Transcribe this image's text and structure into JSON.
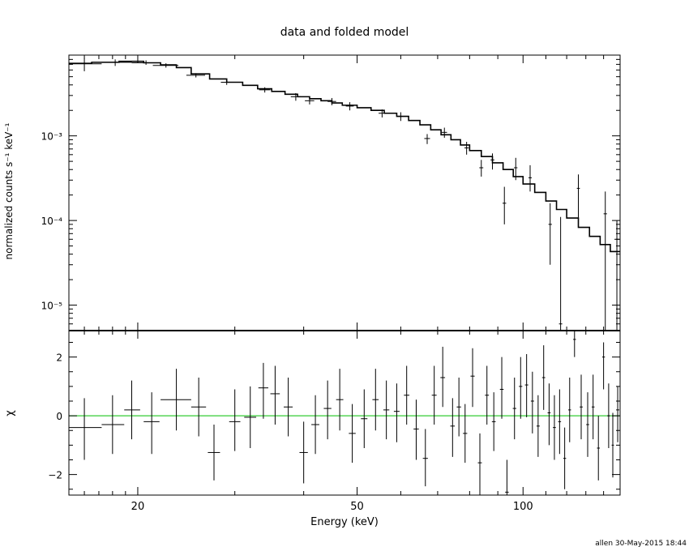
{
  "footer": "allen 30-May-2015 18:44",
  "colors": {
    "model": "#000000",
    "data": "#000000",
    "zero_line": "#33cc33",
    "axes": "#000000"
  },
  "chart_data": [
    {
      "type": "line",
      "panel": "spectrum",
      "title": "data and folded model",
      "xlabel": "",
      "ylabel": "normalized counts s⁻¹ keV⁻¹",
      "xscale": "log",
      "yscale": "log",
      "xlim": [
        15,
        150
      ],
      "ylim": [
        5e-06,
        0.009
      ],
      "yticks": [
        1e-05,
        0.0001,
        0.001
      ],
      "ytick_labels": [
        "10⁻⁵",
        "10⁻⁴",
        "10⁻³"
      ],
      "series": [
        {
          "role": "data",
          "points": [
            {
              "x": 16.0,
              "xlo": 15.0,
              "xhi": 17.2,
              "y": 0.0071,
              "ylo": 0.0058,
              "yhi": 0.0083
            },
            {
              "x": 18.2,
              "xlo": 17.2,
              "xhi": 19.5,
              "y": 0.0074,
              "ylo": 0.0067,
              "yhi": 0.008
            },
            {
              "x": 20.7,
              "xlo": 19.5,
              "xhi": 21.3,
              "y": 0.0073,
              "ylo": 0.0069,
              "yhi": 0.0078
            },
            {
              "x": 22.5,
              "xlo": 21.3,
              "xhi": 23.7,
              "y": 0.0068,
              "ylo": 0.0064,
              "yhi": 0.0072
            },
            {
              "x": 25.5,
              "xlo": 24.5,
              "xhi": 26.5,
              "y": 0.0052,
              "ylo": 0.0049,
              "yhi": 0.0055
            },
            {
              "x": 29.0,
              "xlo": 28.3,
              "xhi": 29.7,
              "y": 0.0043,
              "ylo": 0.004,
              "yhi": 0.0046
            },
            {
              "x": 34.0,
              "xlo": 33.2,
              "xhi": 34.8,
              "y": 0.0035,
              "ylo": 0.00325,
              "yhi": 0.00375
            },
            {
              "x": 38.7,
              "xlo": 37.9,
              "xhi": 39.5,
              "y": 0.0029,
              "ylo": 0.0026,
              "yhi": 0.0032
            },
            {
              "x": 41.0,
              "xlo": 40.2,
              "xhi": 41.8,
              "y": 0.0026,
              "ylo": 0.00235,
              "yhi": 0.00285
            },
            {
              "x": 45.0,
              "xlo": 44.2,
              "xhi": 45.8,
              "y": 0.00255,
              "ylo": 0.0023,
              "yhi": 0.0028
            },
            {
              "x": 48.5,
              "xlo": 47.7,
              "xhi": 49.3,
              "y": 0.00225,
              "ylo": 0.002,
              "yhi": 0.0025
            },
            {
              "x": 55.5,
              "xlo": 54.7,
              "xhi": 56.3,
              "y": 0.00185,
              "ylo": 0.00165,
              "yhi": 0.00205
            },
            {
              "x": 60.0,
              "xlo": 59.2,
              "xhi": 60.8,
              "y": 0.0017,
              "ylo": 0.0015,
              "yhi": 0.0019
            },
            {
              "x": 67.0,
              "xlo": 66.2,
              "xhi": 67.8,
              "y": 0.00093,
              "ylo": 0.0008,
              "yhi": 0.00105
            },
            {
              "x": 72.0,
              "xlo": 71.2,
              "xhi": 72.8,
              "y": 0.0011,
              "ylo": 0.00095,
              "yhi": 0.00125
            },
            {
              "x": 79.0,
              "xlo": 78.3,
              "xhi": 79.7,
              "y": 0.00072,
              "ylo": 0.0006,
              "yhi": 0.00085
            },
            {
              "x": 84.0,
              "xlo": 83.3,
              "xhi": 84.7,
              "y": 0.00042,
              "ylo": 0.00033,
              "yhi": 0.00052
            },
            {
              "x": 88.0,
              "xlo": 87.3,
              "xhi": 88.7,
              "y": 0.00052,
              "ylo": 0.0004,
              "yhi": 0.00062
            },
            {
              "x": 92.5,
              "xlo": 91.8,
              "xhi": 93.2,
              "y": 0.00016,
              "ylo": 9e-05,
              "yhi": 0.00025
            },
            {
              "x": 97.0,
              "xlo": 96.3,
              "xhi": 97.7,
              "y": 0.00042,
              "ylo": 0.0003,
              "yhi": 0.00055
            },
            {
              "x": 103.0,
              "xlo": 102.3,
              "xhi": 103.7,
              "y": 0.00032,
              "ylo": 0.00022,
              "yhi": 0.00045
            },
            {
              "x": 112.0,
              "xlo": 111.2,
              "xhi": 112.8,
              "y": 9e-05,
              "ylo": 3e-05,
              "yhi": 0.00016
            },
            {
              "x": 117.0,
              "xlo": 116.2,
              "xhi": 117.8,
              "y": 6e-06,
              "ylo": 5e-06,
              "yhi": 0.00011
            },
            {
              "x": 126.0,
              "xlo": 125.2,
              "xhi": 126.8,
              "y": 0.00024,
              "ylo": 0.0001,
              "yhi": 0.00035
            },
            {
              "x": 141.0,
              "xlo": 140.0,
              "xhi": 142.0,
              "y": 0.00012,
              "ylo": 5e-06,
              "yhi": 0.00022
            },
            {
              "x": 148.0,
              "xlo": 146.5,
              "xhi": 149.5,
              "y": 6e-05,
              "ylo": 5e-06,
              "yhi": 0.0001
            }
          ]
        },
        {
          "role": "model",
          "steps": [
            [
              15.0,
              0.0072
            ],
            [
              16.5,
              0.0074
            ],
            [
              18.5,
              0.0076
            ],
            [
              20.5,
              0.0073
            ],
            [
              22.0,
              0.0069
            ],
            [
              23.5,
              0.0064
            ],
            [
              25.0,
              0.0054
            ],
            [
              27.0,
              0.0047
            ],
            [
              29.0,
              0.0043
            ],
            [
              31.0,
              0.00395
            ],
            [
              33.0,
              0.0036
            ],
            [
              35.0,
              0.00335
            ],
            [
              37.0,
              0.0031
            ],
            [
              39.0,
              0.0029
            ],
            [
              41.0,
              0.00275
            ],
            [
              43.0,
              0.0026
            ],
            [
              45.0,
              0.00245
            ],
            [
              47.0,
              0.0023
            ],
            [
              50.0,
              0.00215
            ],
            [
              53.0,
              0.002
            ],
            [
              56.0,
              0.00185
            ],
            [
              59.0,
              0.0017
            ],
            [
              62.0,
              0.00152
            ],
            [
              65.0,
              0.00135
            ],
            [
              68.0,
              0.00118
            ],
            [
              71.0,
              0.00103
            ],
            [
              74.0,
              0.0009
            ],
            [
              77.0,
              0.00078
            ],
            [
              80.0,
              0.00067
            ],
            [
              84.0,
              0.00057
            ],
            [
              88.0,
              0.00048
            ],
            [
              92.0,
              0.0004
            ],
            [
              96.0,
              0.00033
            ],
            [
              100.0,
              0.00027
            ],
            [
              105.0,
              0.000215
            ],
            [
              110.0,
              0.00017
            ],
            [
              115.0,
              0.000135
            ],
            [
              120.0,
              0.000107
            ],
            [
              126.0,
              8.3e-05
            ],
            [
              132.0,
              6.5e-05
            ],
            [
              138.0,
              5.2e-05
            ],
            [
              144.0,
              4.3e-05
            ],
            [
              150.0,
              4.3e-05
            ]
          ]
        }
      ]
    },
    {
      "type": "scatter",
      "panel": "residuals",
      "xlabel": "Energy (keV)",
      "ylabel": "χ",
      "xscale": "log",
      "xlim": [
        15,
        150
      ],
      "ylim": [
        -2.7,
        2.9
      ],
      "xticks": [
        20,
        50,
        100
      ],
      "xtick_labels": [
        "20",
        "50",
        "100"
      ],
      "yticks": [
        -2,
        0,
        2
      ],
      "ytick_labels": [
        "−2",
        "0",
        "2"
      ],
      "reference_line": 0,
      "points": [
        {
          "x": 16.0,
          "xlo": 15.0,
          "xhi": 17.2,
          "y": -0.4,
          "ylo": -1.5,
          "yhi": 0.6
        },
        {
          "x": 18.0,
          "xlo": 17.2,
          "xhi": 18.9,
          "y": -0.3,
          "ylo": -1.3,
          "yhi": 0.7
        },
        {
          "x": 19.5,
          "xlo": 18.9,
          "xhi": 20.2,
          "y": 0.2,
          "ylo": -0.8,
          "yhi": 1.2
        },
        {
          "x": 21.2,
          "xlo": 20.5,
          "xhi": 21.9,
          "y": -0.2,
          "ylo": -1.3,
          "yhi": 0.8
        },
        {
          "x": 23.5,
          "xlo": 22.0,
          "xhi": 25.0,
          "y": 0.55,
          "ylo": -0.5,
          "yhi": 1.6
        },
        {
          "x": 25.8,
          "xlo": 25.0,
          "xhi": 26.6,
          "y": 0.3,
          "ylo": -0.7,
          "yhi": 1.3
        },
        {
          "x": 27.5,
          "xlo": 26.8,
          "xhi": 28.2,
          "y": -1.25,
          "ylo": -2.2,
          "yhi": -0.3
        },
        {
          "x": 30.0,
          "xlo": 29.3,
          "xhi": 30.7,
          "y": -0.2,
          "ylo": -1.2,
          "yhi": 0.9
        },
        {
          "x": 32.0,
          "xlo": 31.2,
          "xhi": 32.8,
          "y": -0.05,
          "ylo": -1.1,
          "yhi": 1.0
        },
        {
          "x": 33.8,
          "xlo": 33.1,
          "xhi": 34.5,
          "y": 0.95,
          "ylo": -0.1,
          "yhi": 1.8
        },
        {
          "x": 35.5,
          "xlo": 34.8,
          "xhi": 36.2,
          "y": 0.75,
          "ylo": -0.3,
          "yhi": 1.7
        },
        {
          "x": 37.5,
          "xlo": 36.8,
          "xhi": 38.2,
          "y": 0.3,
          "ylo": -0.7,
          "yhi": 1.3
        },
        {
          "x": 40.0,
          "xlo": 39.3,
          "xhi": 40.7,
          "y": -1.25,
          "ylo": -2.3,
          "yhi": -0.2
        },
        {
          "x": 42.0,
          "xlo": 41.3,
          "xhi": 42.7,
          "y": -0.3,
          "ylo": -1.3,
          "yhi": 0.7
        },
        {
          "x": 44.2,
          "xlo": 43.5,
          "xhi": 44.9,
          "y": 0.25,
          "ylo": -0.8,
          "yhi": 1.2
        },
        {
          "x": 46.5,
          "xlo": 45.8,
          "xhi": 47.2,
          "y": 0.55,
          "ylo": -0.5,
          "yhi": 1.6
        },
        {
          "x": 49.0,
          "xlo": 48.3,
          "xhi": 49.7,
          "y": -0.6,
          "ylo": -1.6,
          "yhi": 0.4
        },
        {
          "x": 51.5,
          "xlo": 50.8,
          "xhi": 52.2,
          "y": -0.1,
          "ylo": -1.1,
          "yhi": 0.9
        },
        {
          "x": 54.0,
          "xlo": 53.3,
          "xhi": 54.7,
          "y": 0.55,
          "ylo": -0.5,
          "yhi": 1.6
        },
        {
          "x": 56.5,
          "xlo": 55.8,
          "xhi": 57.2,
          "y": 0.2,
          "ylo": -0.8,
          "yhi": 1.2
        },
        {
          "x": 59.0,
          "xlo": 58.3,
          "xhi": 59.7,
          "y": 0.15,
          "ylo": -0.9,
          "yhi": 1.1
        },
        {
          "x": 61.5,
          "xlo": 60.8,
          "xhi": 62.2,
          "y": 0.7,
          "ylo": -0.3,
          "yhi": 1.7
        },
        {
          "x": 64.0,
          "xlo": 63.3,
          "xhi": 64.7,
          "y": -0.45,
          "ylo": -1.5,
          "yhi": 0.55
        },
        {
          "x": 66.5,
          "xlo": 65.8,
          "xhi": 67.2,
          "y": -1.45,
          "ylo": -2.4,
          "yhi": -0.45
        },
        {
          "x": 69.0,
          "xlo": 68.3,
          "xhi": 69.7,
          "y": 0.7,
          "ylo": -0.3,
          "yhi": 1.7
        },
        {
          "x": 71.5,
          "xlo": 70.8,
          "xhi": 72.2,
          "y": 1.3,
          "ylo": 0.3,
          "yhi": 2.35
        },
        {
          "x": 74.5,
          "xlo": 73.8,
          "xhi": 75.2,
          "y": -0.35,
          "ylo": -1.4,
          "yhi": 0.6
        },
        {
          "x": 76.5,
          "xlo": 75.8,
          "xhi": 77.2,
          "y": 0.3,
          "ylo": -0.7,
          "yhi": 1.3
        },
        {
          "x": 78.5,
          "xlo": 77.8,
          "xhi": 79.2,
          "y": -0.6,
          "ylo": -1.6,
          "yhi": 0.4
        },
        {
          "x": 81.0,
          "xlo": 80.3,
          "xhi": 81.7,
          "y": 1.35,
          "ylo": 0.3,
          "yhi": 2.3
        },
        {
          "x": 83.5,
          "xlo": 82.8,
          "xhi": 84.2,
          "y": -1.6,
          "ylo": -2.7,
          "yhi": -0.6
        },
        {
          "x": 86.0,
          "xlo": 85.3,
          "xhi": 86.7,
          "y": 0.7,
          "ylo": -0.3,
          "yhi": 1.7
        },
        {
          "x": 88.5,
          "xlo": 87.8,
          "xhi": 89.2,
          "y": -0.2,
          "ylo": -1.2,
          "yhi": 0.8
        },
        {
          "x": 91.5,
          "xlo": 90.8,
          "xhi": 92.2,
          "y": 0.9,
          "ylo": -0.1,
          "yhi": 2.0
        },
        {
          "x": 93.5,
          "xlo": 92.8,
          "xhi": 94.2,
          "y": -2.6,
          "ylo": -2.7,
          "yhi": -1.5
        },
        {
          "x": 96.5,
          "xlo": 95.8,
          "xhi": 97.2,
          "y": 0.25,
          "ylo": -0.8,
          "yhi": 1.3
        },
        {
          "x": 99.0,
          "xlo": 98.3,
          "xhi": 99.7,
          "y": 1.0,
          "ylo": -0.1,
          "yhi": 2.0
        },
        {
          "x": 101.5,
          "xlo": 100.8,
          "xhi": 102.2,
          "y": 1.05,
          "ylo": -0.05,
          "yhi": 2.1
        },
        {
          "x": 104.0,
          "xlo": 103.3,
          "xhi": 104.7,
          "y": 0.5,
          "ylo": -0.6,
          "yhi": 1.5
        },
        {
          "x": 106.5,
          "xlo": 105.8,
          "xhi": 107.2,
          "y": -0.35,
          "ylo": -1.4,
          "yhi": 0.7
        },
        {
          "x": 109.0,
          "xlo": 108.3,
          "xhi": 109.7,
          "y": 1.3,
          "ylo": 0.2,
          "yhi": 2.4
        },
        {
          "x": 111.5,
          "xlo": 110.8,
          "xhi": 112.2,
          "y": 0.1,
          "ylo": -1.0,
          "yhi": 1.1
        },
        {
          "x": 114.0,
          "xlo": 113.3,
          "xhi": 114.7,
          "y": -0.4,
          "ylo": -1.5,
          "yhi": 0.7
        },
        {
          "x": 116.5,
          "xlo": 115.8,
          "xhi": 117.2,
          "y": -0.2,
          "ylo": -1.3,
          "yhi": 0.9
        },
        {
          "x": 119.0,
          "xlo": 118.3,
          "xhi": 119.7,
          "y": -1.45,
          "ylo": -2.5,
          "yhi": -0.4
        },
        {
          "x": 121.5,
          "xlo": 120.8,
          "xhi": 122.2,
          "y": 0.2,
          "ylo": -0.9,
          "yhi": 1.3
        },
        {
          "x": 124.0,
          "xlo": 123.3,
          "xhi": 124.7,
          "y": 2.6,
          "ylo": 2.0,
          "yhi": 2.9
        },
        {
          "x": 127.5,
          "xlo": 126.7,
          "xhi": 128.3,
          "y": 0.3,
          "ylo": -0.8,
          "yhi": 1.4
        },
        {
          "x": 131.0,
          "xlo": 130.2,
          "xhi": 131.8,
          "y": -0.3,
          "ylo": -1.4,
          "yhi": 0.8
        },
        {
          "x": 134.0,
          "xlo": 133.2,
          "xhi": 134.8,
          "y": 0.3,
          "ylo": -0.8,
          "yhi": 1.4
        },
        {
          "x": 137.0,
          "xlo": 136.2,
          "xhi": 137.8,
          "y": -1.1,
          "ylo": -2.2,
          "yhi": 0.0
        },
        {
          "x": 140.0,
          "xlo": 139.2,
          "xhi": 140.8,
          "y": 2.0,
          "ylo": 0.9,
          "yhi": 2.5
        },
        {
          "x": 143.0,
          "xlo": 142.2,
          "xhi": 143.8,
          "y": 0.0,
          "ylo": -1.1,
          "yhi": 1.1
        },
        {
          "x": 145.5,
          "xlo": 144.8,
          "xhi": 146.2,
          "y": -1.0,
          "ylo": -2.1,
          "yhi": 0.1
        },
        {
          "x": 148.5,
          "xlo": 147.5,
          "xhi": 149.5,
          "y": 0.2,
          "ylo": -0.9,
          "yhi": 1.0
        }
      ]
    }
  ]
}
